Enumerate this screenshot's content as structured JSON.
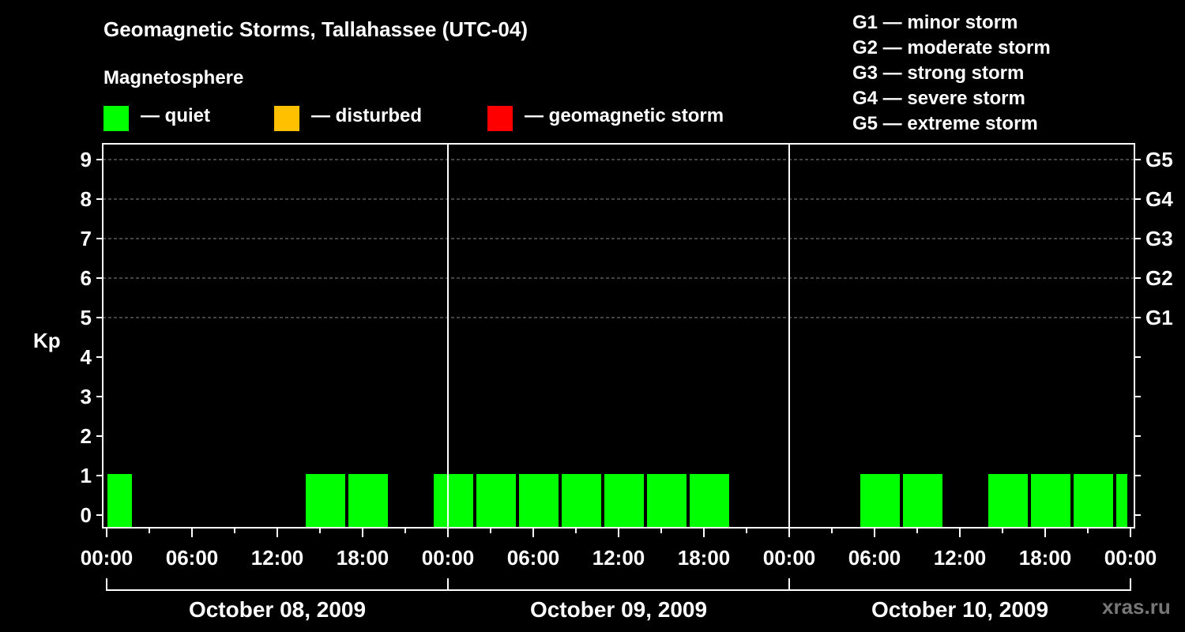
{
  "chart_data": {
    "type": "bar",
    "title": "Geomagnetic Storms, Tallahassee (UTC-04)",
    "subtitle": "Magnetosphere",
    "ylabel": "Kp",
    "ylim": [
      0,
      9
    ],
    "yticks": [
      "0",
      "1",
      "2",
      "3",
      "4",
      "5",
      "6",
      "7",
      "8",
      "9"
    ],
    "right_axis_labels": [
      {
        "kp": 5,
        "label": "G1"
      },
      {
        "kp": 6,
        "label": "G2"
      },
      {
        "kp": 7,
        "label": "G3"
      },
      {
        "kp": 8,
        "label": "G4"
      },
      {
        "kp": 9,
        "label": "G5"
      }
    ],
    "xticks": [
      "00:00",
      "06:00",
      "12:00",
      "18:00",
      "00:00",
      "06:00",
      "12:00",
      "18:00",
      "00:00",
      "06:00",
      "12:00",
      "18:00",
      "00:00"
    ],
    "xtick_hours": [
      0,
      6,
      12,
      18,
      24,
      30,
      36,
      42,
      48,
      54,
      60,
      66,
      72
    ],
    "days": [
      "October 08, 2009",
      "October 09, 2009",
      "October 10, 2009"
    ],
    "legend": [
      {
        "color": "#00ff00",
        "label": "— quiet"
      },
      {
        "color": "#ffc000",
        "label": "— disturbed"
      },
      {
        "color": "#ff0000",
        "label": "— geomagnetic storm"
      }
    ],
    "storm_scale": [
      "G1 — minor storm",
      "G2 — moderate storm",
      "G3 — strong storm",
      "G4 — severe storm",
      "G5 — extreme storm"
    ],
    "colors": {
      "quiet": "#00ff00",
      "disturbed": "#ffc000",
      "storm": "#ff0000",
      "grid": "#888888"
    },
    "series": [
      {
        "name": "Kp",
        "interval_hours": 3,
        "first_start_hour": -1,
        "chart_end_hour": 72,
        "values": [
          1,
          0,
          0,
          0,
          0,
          1,
          1,
          0,
          1,
          1,
          1,
          1,
          1,
          1,
          1,
          0,
          0,
          0,
          1,
          1,
          0,
          1,
          1,
          1,
          1
        ]
      }
    ]
  },
  "watermark": "xras.ru"
}
